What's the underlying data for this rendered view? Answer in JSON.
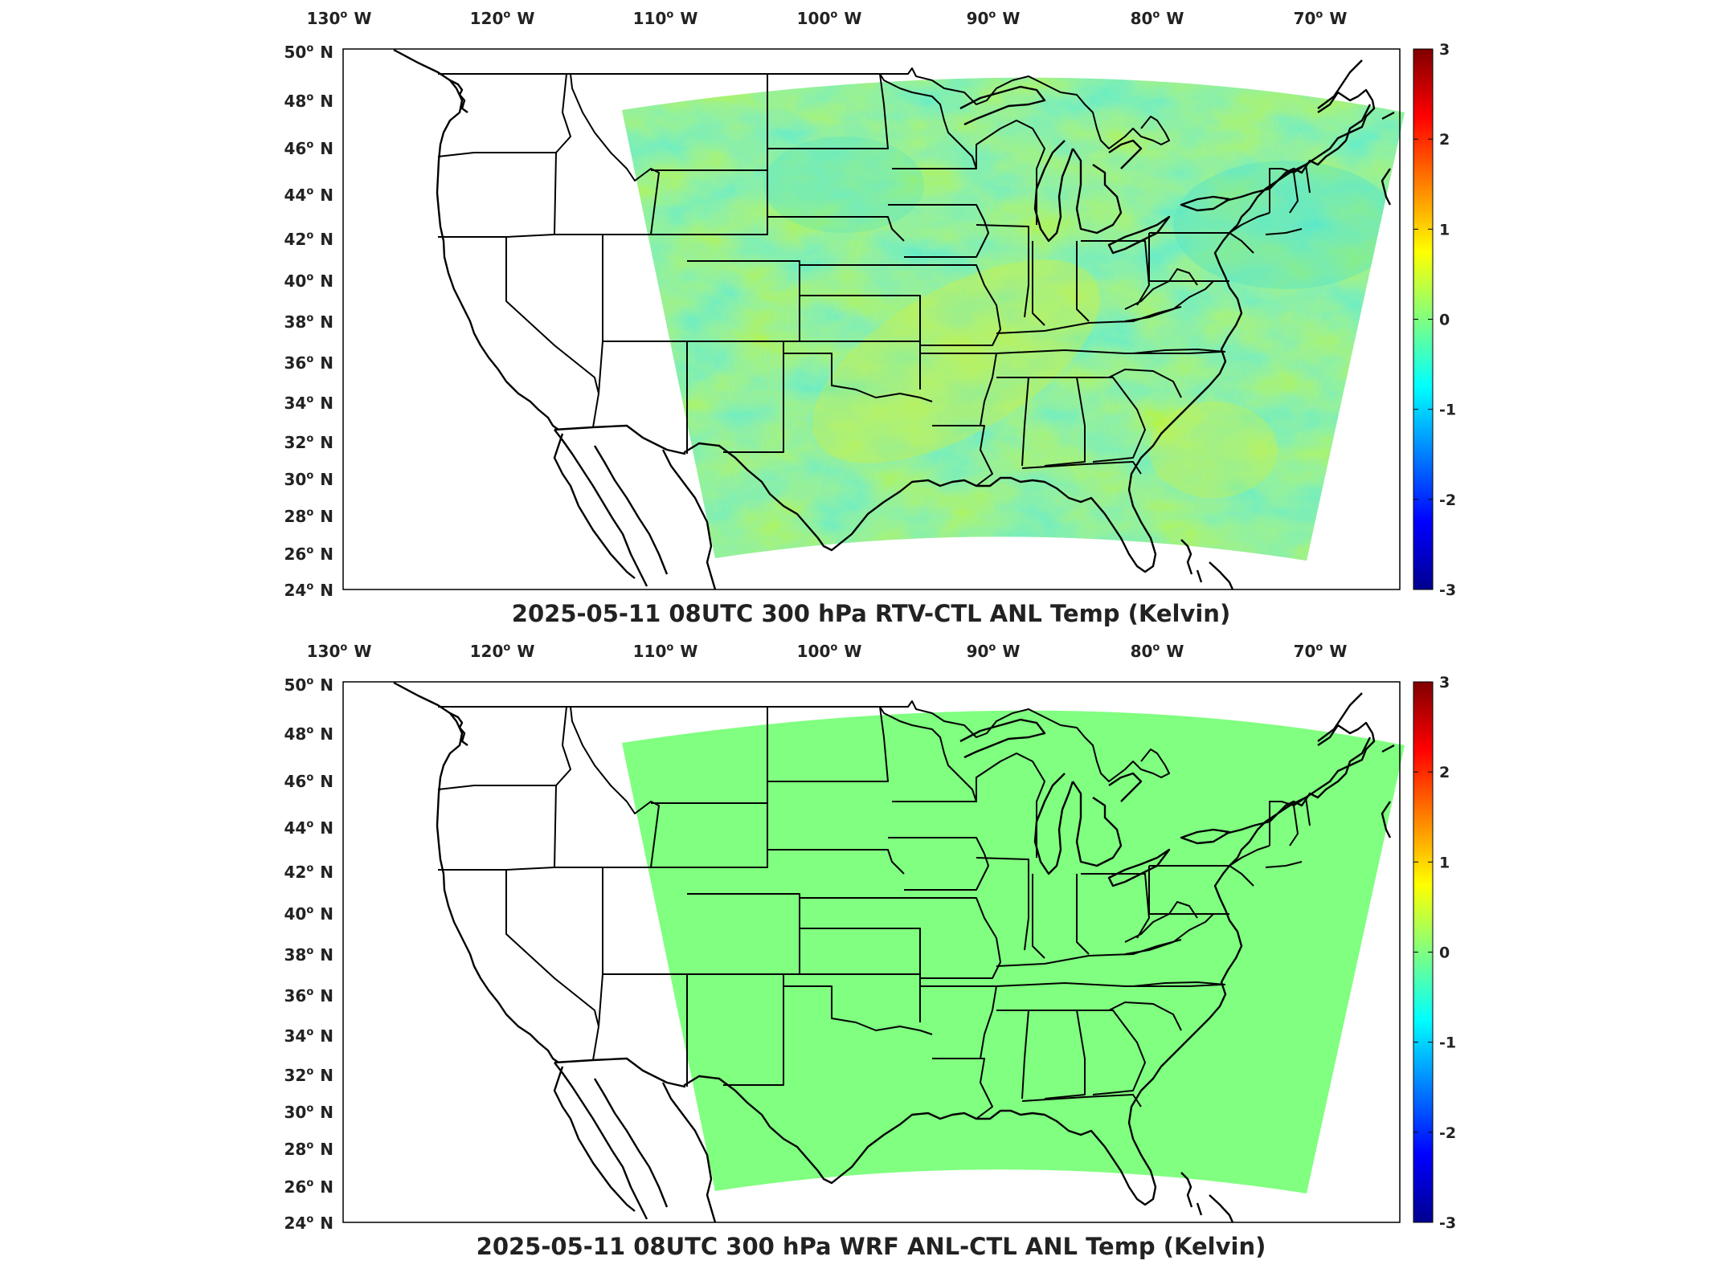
{
  "panels": [
    {
      "id": "top",
      "title": "2025-05-11 08UTC 300 hPa RTV-CTL ANL Temp (Kelvin)",
      "field": "noisy"
    },
    {
      "id": "bottom",
      "title": "2025-05-11 08UTC 300 hPa WRF ANL-CTL ANL Temp (Kelvin)",
      "field": "uniform"
    }
  ],
  "chart_data": [
    {
      "type": "heatmap",
      "title": "2025-05-11 08UTC 300 hPa RTV-CTL ANL Temp (Kelvin)",
      "xticks": [
        "130",
        "120",
        "110",
        "100",
        "90",
        "80",
        "70"
      ],
      "xtick_suffix": "W",
      "yticks": [
        "50",
        "48",
        "46",
        "44",
        "42",
        "40",
        "38",
        "36",
        "34",
        "32",
        "30",
        "28",
        "26",
        "24"
      ],
      "ytick_suffix": "N",
      "xlim": [
        -131,
        -66
      ],
      "ylim": [
        24,
        50
      ],
      "colorbar": {
        "ticks": [
          "3",
          "2",
          "1",
          "0",
          "-1",
          "-2",
          "-3"
        ],
        "range": [
          -3,
          3
        ],
        "colormap": "jet"
      },
      "field_description_range": [
        -0.6,
        0.6
      ]
    },
    {
      "type": "heatmap",
      "title": "2025-05-11 08UTC 300 hPa WRF ANL-CTL ANL Temp (Kelvin)",
      "xticks": [
        "130",
        "120",
        "110",
        "100",
        "90",
        "80",
        "70"
      ],
      "xtick_suffix": "W",
      "yticks": [
        "50",
        "48",
        "46",
        "44",
        "42",
        "40",
        "38",
        "36",
        "34",
        "32",
        "30",
        "28",
        "26",
        "24"
      ],
      "ytick_suffix": "N",
      "xlim": [
        -131,
        -66
      ],
      "ylim": [
        24,
        50
      ],
      "colorbar": {
        "ticks": [
          "3",
          "2",
          "1",
          "0",
          "-1",
          "-2",
          "-3"
        ],
        "range": [
          -3,
          3
        ],
        "colormap": "jet"
      },
      "field_value": 0
    }
  ],
  "colors": {
    "field_uniform": "#80ff80",
    "field_green": "#7ef27a",
    "field_cyan": "#52e8c2",
    "field_yellow": "#c8f542"
  }
}
